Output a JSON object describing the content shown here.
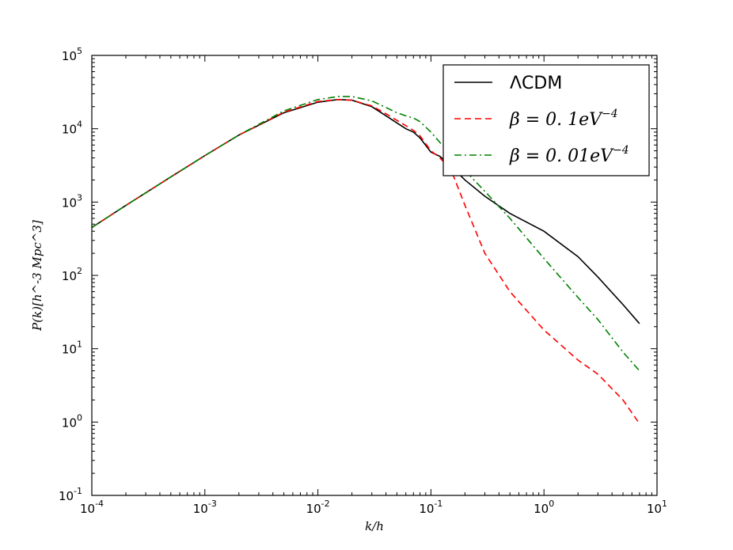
{
  "chart_data": {
    "type": "line",
    "xscale": "log",
    "yscale": "log",
    "xlim": [
      0.0001,
      10
    ],
    "ylim": [
      0.1,
      100000
    ],
    "xlabel": "k/h",
    "ylabel": "P(k)[h^-3 Mpc^3]",
    "grid": false,
    "legend_position": "top-right",
    "x_ticks": [
      {
        "base": "10",
        "exp": "-4"
      },
      {
        "base": "10",
        "exp": "-3"
      },
      {
        "base": "10",
        "exp": "-2"
      },
      {
        "base": "10",
        "exp": "-1"
      },
      {
        "base": "10",
        "exp": "0"
      },
      {
        "base": "10",
        "exp": "1"
      }
    ],
    "y_ticks": [
      {
        "base": "10",
        "exp": "-1"
      },
      {
        "base": "10",
        "exp": "0"
      },
      {
        "base": "10",
        "exp": "1"
      },
      {
        "base": "10",
        "exp": "2"
      },
      {
        "base": "10",
        "exp": "3"
      },
      {
        "base": "10",
        "exp": "4"
      },
      {
        "base": "10",
        "exp": "5"
      }
    ],
    "series": [
      {
        "name": "ΛCDM",
        "legend_label": {
          "main": "ΛCDM"
        },
        "color": "#000000",
        "style": "solid",
        "x": [
          0.0001,
          0.0002,
          0.0005,
          0.001,
          0.002,
          0.005,
          0.01,
          0.015,
          0.02,
          0.03,
          0.04,
          0.05,
          0.06,
          0.07,
          0.08,
          0.1,
          0.12,
          0.15,
          0.2,
          0.3,
          0.5,
          1.0,
          2.0,
          3.0,
          5.0,
          7.0
        ],
        "y": [
          450,
          900,
          2200,
          4300,
          8200,
          16500,
          23000,
          25000,
          24500,
          20000,
          15000,
          12000,
          10000,
          9000,
          7500,
          4800,
          4200,
          3100,
          2000,
          1200,
          700,
          400,
          180,
          95,
          40,
          22
        ]
      },
      {
        "name": "β=0.1eV^-4",
        "legend_label": {
          "main": "β = 0. 1eV",
          "sup": "−4"
        },
        "color": "#ff0000",
        "style": "dashed",
        "x": [
          0.0001,
          0.0002,
          0.0005,
          0.001,
          0.002,
          0.005,
          0.01,
          0.015,
          0.02,
          0.03,
          0.04,
          0.05,
          0.06,
          0.07,
          0.08,
          0.1,
          0.12,
          0.15,
          0.2,
          0.3,
          0.5,
          1.0,
          2.0,
          3.0,
          5.0,
          7.0
        ],
        "y": [
          450,
          900,
          2200,
          4300,
          8200,
          16800,
          23500,
          25000,
          24500,
          20500,
          16000,
          13000,
          11000,
          9500,
          8000,
          5000,
          4000,
          2800,
          900,
          200,
          60,
          18,
          7,
          4.5,
          2,
          0.95
        ]
      },
      {
        "name": "β=0.01eV^-4",
        "legend_label": {
          "main": "β = 0. 01eV",
          "sup": "−4"
        },
        "color": "#008000",
        "style": "dashdot",
        "x": [
          0.0001,
          0.0002,
          0.0005,
          0.001,
          0.002,
          0.005,
          0.01,
          0.015,
          0.02,
          0.03,
          0.04,
          0.05,
          0.06,
          0.07,
          0.08,
          0.1,
          0.12,
          0.15,
          0.2,
          0.3,
          0.5,
          1.0,
          2.0,
          3.0,
          5.0,
          7.0
        ],
        "y": [
          450,
          900,
          2200,
          4300,
          8200,
          17500,
          25000,
          27500,
          27500,
          24000,
          19500,
          16500,
          15000,
          14000,
          12500,
          9000,
          6500,
          4500,
          2700,
          1400,
          600,
          170,
          50,
          25,
          9,
          5
        ]
      }
    ]
  }
}
